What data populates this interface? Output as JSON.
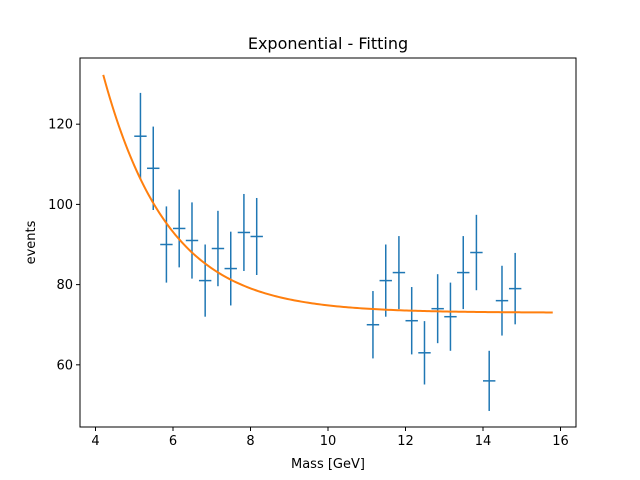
{
  "chart_data": {
    "type": "scatter",
    "title": "Exponential - Fitting",
    "xlabel": "Mass [GeV]",
    "ylabel": "events",
    "xlim": [
      3.6,
      16.4
    ],
    "ylim": [
      44.5,
      136.5
    ],
    "xticks": [
      4,
      6,
      8,
      10,
      12,
      14,
      16
    ],
    "yticks": [
      60,
      80,
      100,
      120
    ],
    "xtick_labels": [
      "4",
      "6",
      "8",
      "10",
      "12",
      "14",
      "16"
    ],
    "ytick_labels": [
      "60",
      "80",
      "100",
      "120"
    ],
    "grid": false,
    "bin_half_width": 0.16,
    "series": [
      {
        "kind": "errorbar",
        "color": "#1f77b4",
        "points": [
          {
            "x": 5.16,
            "y": 117,
            "yerr": 10.8
          },
          {
            "x": 5.49,
            "y": 109,
            "yerr": 10.4
          },
          {
            "x": 5.83,
            "y": 90,
            "yerr": 9.5
          },
          {
            "x": 6.16,
            "y": 94,
            "yerr": 9.7
          },
          {
            "x": 6.49,
            "y": 91,
            "yerr": 9.5
          },
          {
            "x": 6.83,
            "y": 81,
            "yerr": 9.0
          },
          {
            "x": 7.16,
            "y": 89,
            "yerr": 9.4
          },
          {
            "x": 7.49,
            "y": 84,
            "yerr": 9.2
          },
          {
            "x": 7.83,
            "y": 93,
            "yerr": 9.6
          },
          {
            "x": 8.16,
            "y": 92,
            "yerr": 9.6
          },
          {
            "x": 11.16,
            "y": 70,
            "yerr": 8.4
          },
          {
            "x": 11.49,
            "y": 81,
            "yerr": 9.0
          },
          {
            "x": 11.83,
            "y": 83,
            "yerr": 9.1
          },
          {
            "x": 12.16,
            "y": 71,
            "yerr": 8.4
          },
          {
            "x": 12.49,
            "y": 63,
            "yerr": 7.9
          },
          {
            "x": 12.83,
            "y": 74,
            "yerr": 8.6
          },
          {
            "x": 13.16,
            "y": 72,
            "yerr": 8.5
          },
          {
            "x": 13.49,
            "y": 83,
            "yerr": 9.1
          },
          {
            "x": 13.83,
            "y": 88,
            "yerr": 9.4
          },
          {
            "x": 14.16,
            "y": 56,
            "yerr": 7.5
          },
          {
            "x": 14.49,
            "y": 76,
            "yerr": 8.7
          },
          {
            "x": 14.83,
            "y": 79,
            "yerr": 8.9
          }
        ]
      },
      {
        "kind": "line",
        "color": "#ff7f0e",
        "x_range": [
          4.2,
          15.8
        ],
        "model": "y = a * exp(-b * (x - x0)) + c",
        "params": {
          "a": 59.3,
          "b": 0.6,
          "x0": 4.2,
          "c": 73.0
        }
      }
    ]
  }
}
